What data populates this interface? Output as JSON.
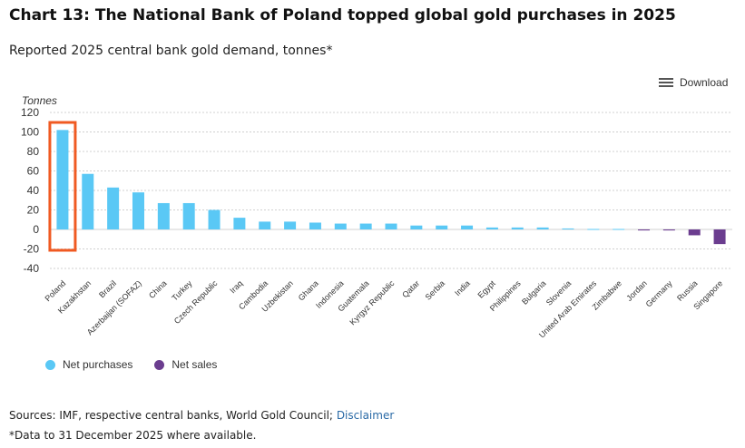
{
  "title": "Chart 13: The National Bank of Poland topped global gold purchases in 2025",
  "subtitle": "Reported 2025 central bank gold demand, tonnes*",
  "download_label": "Download",
  "download_icon": "menu-icon",
  "legend": {
    "net_purchases": "Net purchases",
    "net_sales": "Net sales"
  },
  "colors": {
    "net_purchases": "#5ac8f5",
    "net_sales": "#6b3d8f",
    "highlight": "#f05a22",
    "grid": "#d0d0d0"
  },
  "source": {
    "text": "Sources: IMF, respective central banks, World Gold Council;",
    "link": "Disclaimer"
  },
  "note": "*Data to 31 December 2025 where available.",
  "chart_data": {
    "type": "bar",
    "ylabel": "Tonnes",
    "ylim": [
      -40,
      120
    ],
    "yticks": [
      120,
      100,
      80,
      60,
      40,
      20,
      0,
      -20,
      -40
    ],
    "grid": true,
    "legend_position": "bottom-left",
    "highlight_category": "Poland",
    "categories": [
      "Poland",
      "Kazakhstan",
      "Brazil",
      "Azerbaijan (SOFAZ)",
      "China",
      "Turkey",
      "Czech Republic",
      "Iraq",
      "Cambodia",
      "Uzbekistan",
      "Ghana",
      "Indonesia",
      "Guatemala",
      "Kyrgyz Republic",
      "Qatar",
      "Serbia",
      "India",
      "Egypt",
      "Philippines",
      "Bulgaria",
      "Slovenia",
      "United Arab Emirates",
      "Zimbabwe",
      "Jordan",
      "Germany",
      "Russia",
      "Singapore"
    ],
    "series": [
      {
        "name": "Net purchases",
        "values": [
          102,
          57,
          43,
          38,
          27,
          27,
          20,
          12,
          8,
          8,
          7,
          6,
          6,
          6,
          4,
          4,
          4,
          2,
          2,
          2,
          1,
          0.5,
          0.5,
          0,
          0,
          0,
          0
        ]
      },
      {
        "name": "Net sales",
        "values": [
          0,
          0,
          0,
          0,
          0,
          0,
          0,
          0,
          0,
          0,
          0,
          0,
          0,
          0,
          0,
          0,
          0,
          0,
          0,
          0,
          0,
          0,
          0,
          -1,
          -1,
          -6,
          -15
        ]
      }
    ]
  }
}
